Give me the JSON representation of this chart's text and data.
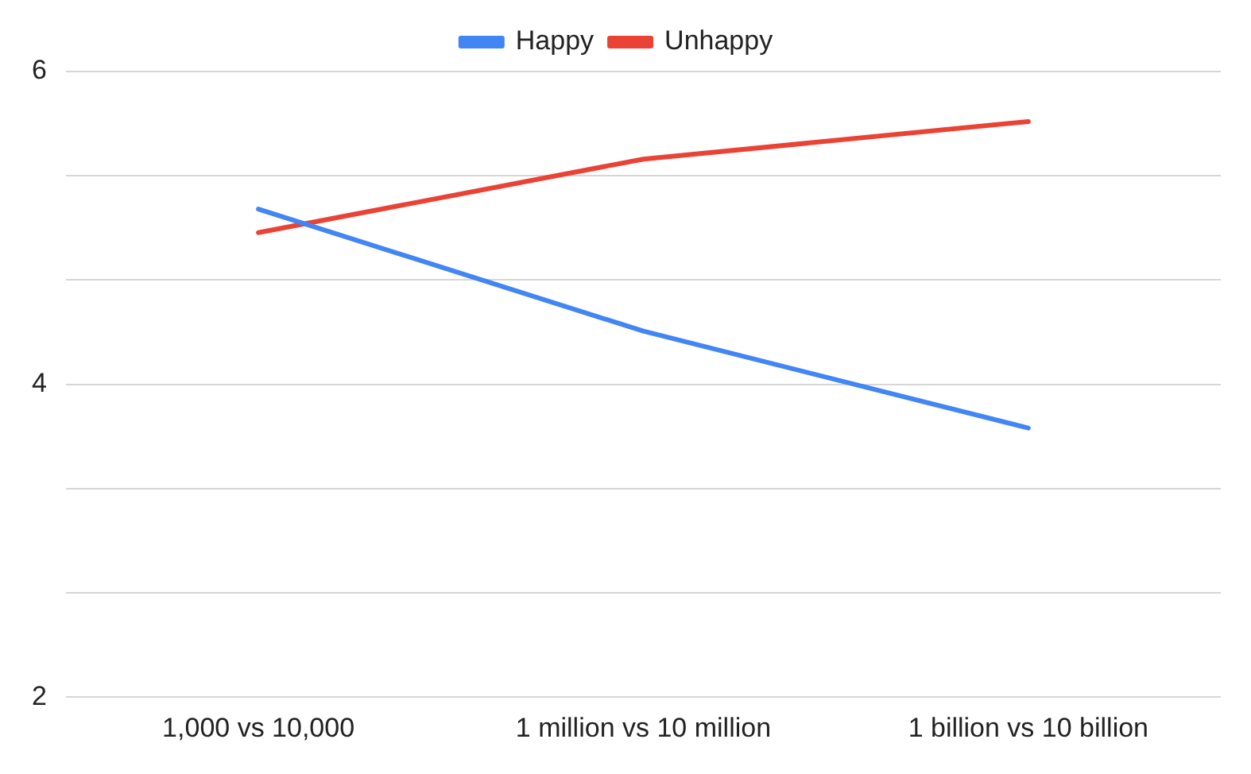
{
  "chart_data": {
    "type": "line",
    "categories": [
      "1,000 vs 10,000",
      "1 million vs 10 million",
      "1 billion vs 10 billion"
    ],
    "series": [
      {
        "name": "Happy",
        "color": "#4285f4",
        "values": [
          5.12,
          4.34,
          3.72
        ]
      },
      {
        "name": "Unhappy",
        "color": "#ea4335",
        "values": [
          4.97,
          5.44,
          5.68
        ]
      }
    ],
    "ylim": [
      2,
      6
    ],
    "yticks": [
      2,
      {
        "value": 2.667,
        "label": null
      },
      {
        "value": 3.333,
        "label": null
      },
      4,
      {
        "value": 4.667,
        "label": null
      },
      {
        "value": 5.333,
        "label": null
      },
      6
    ],
    "grid": "y",
    "legend": "top",
    "marker": "none",
    "line_style": "solid"
  }
}
